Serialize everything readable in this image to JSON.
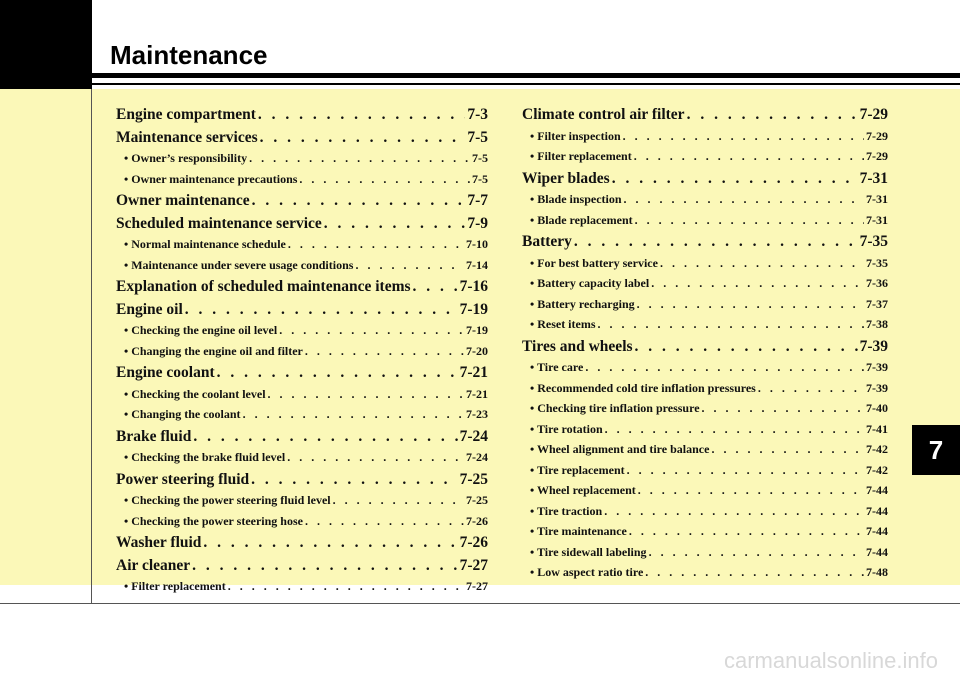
{
  "header": {
    "title": "Maintenance"
  },
  "chapter_tab": "7",
  "toc_left": [
    {
      "label": "Engine compartment",
      "page": "7-3",
      "level": "main"
    },
    {
      "label": "Maintenance services",
      "page": "7-5",
      "level": "main"
    },
    {
      "label": "• Owner’s responsibility",
      "page": "7-5",
      "level": "sub"
    },
    {
      "label": "• Owner maintenance precautions",
      "page": "7-5",
      "level": "sub"
    },
    {
      "label": "Owner maintenance",
      "page": "7-7",
      "level": "main"
    },
    {
      "label": "Scheduled maintenance service",
      "page": "7-9",
      "level": "main"
    },
    {
      "label": "• Normal maintenance schedule",
      "page": "7-10",
      "level": "sub"
    },
    {
      "label": "• Maintenance under severe usage conditions",
      "page": "7-14",
      "level": "sub"
    },
    {
      "label": "Explanation of scheduled maintenance items",
      "page": "7-16",
      "level": "main"
    },
    {
      "label": "Engine oil",
      "page": "7-19",
      "level": "main"
    },
    {
      "label": "• Checking the engine oil level",
      "page": "7-19",
      "level": "sub"
    },
    {
      "label": "• Changing the engine oil and filter",
      "page": "7-20",
      "level": "sub"
    },
    {
      "label": "Engine coolant",
      "page": "7-21",
      "level": "main"
    },
    {
      "label": "• Checking the coolant level",
      "page": "7-21",
      "level": "sub"
    },
    {
      "label": "• Changing the coolant",
      "page": "7-23",
      "level": "sub"
    },
    {
      "label": "Brake fluid",
      "page": "7-24",
      "level": "main"
    },
    {
      "label": "• Checking the brake fluid level",
      "page": "7-24",
      "level": "sub"
    },
    {
      "label": "Power steering fluid",
      "page": "7-25",
      "level": "main"
    },
    {
      "label": "• Checking the power steering fluid level",
      "page": "7-25",
      "level": "sub"
    },
    {
      "label": "• Checking the power steering hose",
      "page": "7-26",
      "level": "sub"
    },
    {
      "label": "Washer fluid",
      "page": "7-26",
      "level": "main"
    },
    {
      "label": "Air cleaner",
      "page": "7-27",
      "level": "main"
    },
    {
      "label": "• Filter replacement",
      "page": "7-27",
      "level": "sub"
    }
  ],
  "toc_right": [
    {
      "label": "Climate control air filter",
      "page": "7-29",
      "level": "main"
    },
    {
      "label": "• Filter inspection",
      "page": "7-29",
      "level": "sub"
    },
    {
      "label": "• Filter replacement",
      "page": "7-29",
      "level": "sub"
    },
    {
      "label": "Wiper blades",
      "page": "7-31",
      "level": "main"
    },
    {
      "label": "• Blade inspection",
      "page": "7-31",
      "level": "sub"
    },
    {
      "label": "• Blade replacement",
      "page": "7-31",
      "level": "sub"
    },
    {
      "label": "Battery",
      "page": "7-35",
      "level": "main"
    },
    {
      "label": "• For best battery service",
      "page": "7-35",
      "level": "sub"
    },
    {
      "label": "• Battery capacity label",
      "page": "7-36",
      "level": "sub"
    },
    {
      "label": "• Battery recharging",
      "page": "7-37",
      "level": "sub"
    },
    {
      "label": "• Reset items",
      "page": "7-38",
      "level": "sub"
    },
    {
      "label": "Tires and wheels",
      "page": "7-39",
      "level": "main"
    },
    {
      "label": "• Tire care",
      "page": "7-39",
      "level": "sub"
    },
    {
      "label": "• Recommended cold tire inflation pressures",
      "page": "7-39",
      "level": "sub"
    },
    {
      "label": "• Checking tire inflation pressure",
      "page": "7-40",
      "level": "sub"
    },
    {
      "label": "• Tire rotation",
      "page": "7-41",
      "level": "sub"
    },
    {
      "label": "• Wheel alignment and tire balance",
      "page": "7-42",
      "level": "sub"
    },
    {
      "label": "• Tire replacement",
      "page": "7-42",
      "level": "sub"
    },
    {
      "label": "• Wheel replacement",
      "page": "7-44",
      "level": "sub"
    },
    {
      "label": "• Tire traction",
      "page": "7-44",
      "level": "sub"
    },
    {
      "label": "• Tire maintenance",
      "page": "7-44",
      "level": "sub"
    },
    {
      "label": "• Tire sidewall labeling",
      "page": "7-44",
      "level": "sub"
    },
    {
      "label": "• Low aspect ratio tire",
      "page": "7-48",
      "level": "sub"
    }
  ],
  "footer": {
    "watermark": "carmanualsonline.info"
  }
}
